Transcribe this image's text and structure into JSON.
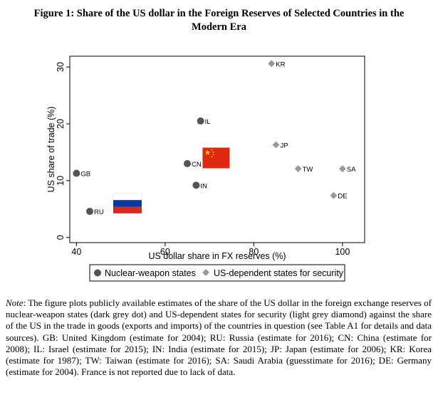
{
  "figure": {
    "title_line1": "Figure 1: Share of the US dollar in the Foreign Reserves of Selected Countries in the",
    "title_line2": "Modern Era"
  },
  "chart_data": {
    "type": "scatter",
    "xlabel": "US dollar share in FX reserves (%)",
    "ylabel": "US share of trade (%)",
    "xlim": [
      38.5,
      105
    ],
    "ylim": [
      -0.9,
      31.9
    ],
    "xticks": [
      40,
      60,
      80,
      100
    ],
    "yticks": [
      0,
      10,
      20,
      30
    ],
    "grid": false,
    "legend_position": "bottom",
    "series": [
      {
        "name": "Nuclear-weapon states",
        "marker": "circle",
        "color": "#555555",
        "points": [
          {
            "label": "GB",
            "x": 40,
            "y": 11.3
          },
          {
            "label": "RU",
            "x": 43,
            "y": 4.6
          },
          {
            "label": "CN",
            "x": 65,
            "y": 13.0
          },
          {
            "label": "IL",
            "x": 68,
            "y": 20.5
          },
          {
            "label": "IN",
            "x": 67,
            "y": 9.2
          }
        ]
      },
      {
        "name": "US-dependent states for security",
        "marker": "diamond",
        "color": "#999999",
        "points": [
          {
            "label": "KR",
            "x": 84,
            "y": 30.6
          },
          {
            "label": "JP",
            "x": 85,
            "y": 16.3
          },
          {
            "label": "TW",
            "x": 90,
            "y": 12.1
          },
          {
            "label": "SA",
            "x": 100,
            "y": 12.1
          },
          {
            "label": "DE",
            "x": 98,
            "y": 7.4
          }
        ]
      }
    ],
    "annotations": [
      {
        "type": "flag",
        "country": "China",
        "x": 71.5,
        "y": 14.0
      },
      {
        "type": "flag",
        "country": "Russia",
        "x": 51.5,
        "y": 6.0
      }
    ]
  },
  "note": {
    "label": "Note",
    "text": ": The figure plots publicly available estimates of the share of the US dollar in the foreign exchange reserves of nuclear-weapon states (dark grey dot) and US-dependent states for security (light grey diamond) against the share of the US in the trade in goods (exports and imports) of the countries in question (see Table A1 for details and data sources). GB: United Kingdom (estimate for 2004); RU: Russia (estimate for 2016); CN: China (estimate for 2008); IL: Israel (estimate for 2015); IN: India (estimate for 2015); JP: Japan (estimate for 2006); KR: Korea (estimate for 1987); TW: Taiwan (estimate for 2016); SA: Saudi Arabia (guesstimate for 2016); DE: Germany (estimate for 2004).  France is not reported due to lack of data."
  }
}
